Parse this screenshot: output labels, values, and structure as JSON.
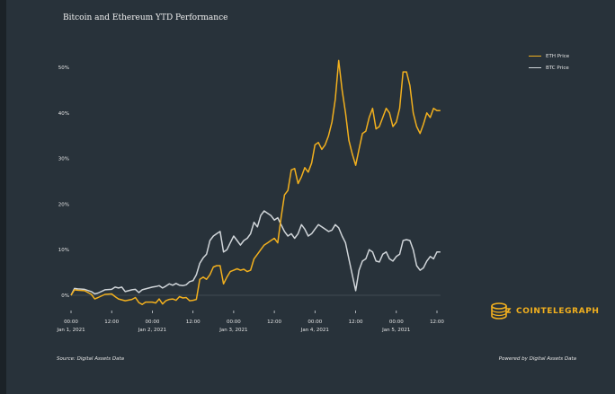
{
  "chart_data": {
    "type": "line",
    "title": "Bitcoin and Ethereum YTD Performance",
    "xlabel": "",
    "ylabel": "",
    "x_range_hours": [
      0,
      108
    ],
    "ylim": [
      -3,
      52
    ],
    "y_ticks": [
      0,
      10,
      20,
      30,
      40,
      50
    ],
    "y_tick_labels": [
      "0%",
      "10%",
      "20%",
      "30%",
      "40%",
      "50%"
    ],
    "x_ticks": [
      {
        "hour": 0,
        "time": "00:00",
        "date": "Jan 1, 2021"
      },
      {
        "hour": 12,
        "time": "12:00",
        "date": ""
      },
      {
        "hour": 24,
        "time": "00:00",
        "date": "Jan 2, 2021"
      },
      {
        "hour": 36,
        "time": "12:00",
        "date": ""
      },
      {
        "hour": 48,
        "time": "00:00",
        "date": "Jan 3, 2021"
      },
      {
        "hour": 60,
        "time": "12:00",
        "date": ""
      },
      {
        "hour": 72,
        "time": "00:00",
        "date": "Jan 4, 2021"
      },
      {
        "hour": 84,
        "time": "12:00",
        "date": ""
      },
      {
        "hour": 96,
        "time": "00:00",
        "date": "Jan 5, 2021"
      },
      {
        "hour": 108,
        "time": "12:00",
        "date": ""
      }
    ],
    "legend_position": "top-right",
    "grid": false,
    "series": [
      {
        "name": "ETH Price",
        "color": "#f2b01e",
        "points": [
          [
            0,
            0
          ],
          [
            1,
            1.2
          ],
          [
            2,
            1.1
          ],
          [
            4,
            1
          ],
          [
            6,
            0.2
          ],
          [
            7,
            -0.8
          ],
          [
            8,
            -0.5
          ],
          [
            10,
            0.2
          ],
          [
            12,
            0.3
          ],
          [
            13,
            -0.3
          ],
          [
            14,
            -0.8
          ],
          [
            16,
            -1.2
          ],
          [
            18,
            -0.9
          ],
          [
            19,
            -0.5
          ],
          [
            20,
            -1.6
          ],
          [
            21,
            -2
          ],
          [
            22,
            -1.5
          ],
          [
            24,
            -1.5
          ],
          [
            25,
            -1.7
          ],
          [
            26,
            -0.8
          ],
          [
            27,
            -1.9
          ],
          [
            28,
            -1.2
          ],
          [
            29,
            -0.9
          ],
          [
            30,
            -0.8
          ],
          [
            31,
            -1.1
          ],
          [
            32,
            -0.3
          ],
          [
            33,
            -0.6
          ],
          [
            34,
            -0.5
          ],
          [
            35,
            -1.2
          ],
          [
            36,
            -1.1
          ],
          [
            37,
            -0.9
          ],
          [
            38,
            3.5
          ],
          [
            39,
            4
          ],
          [
            40,
            3.5
          ],
          [
            41,
            4.5
          ],
          [
            42,
            6.2
          ],
          [
            43,
            6.5
          ],
          [
            44,
            6.5
          ],
          [
            45,
            2.5
          ],
          [
            46,
            4
          ],
          [
            47,
            5.2
          ],
          [
            48,
            5.5
          ],
          [
            49,
            5.8
          ],
          [
            50,
            5.5
          ],
          [
            51,
            5.7
          ],
          [
            52,
            5.2
          ],
          [
            53,
            5.5
          ],
          [
            54,
            8
          ],
          [
            55,
            9
          ],
          [
            56,
            10
          ],
          [
            57,
            11
          ],
          [
            58,
            11.5
          ],
          [
            59,
            12
          ],
          [
            60,
            12.5
          ],
          [
            61,
            11.5
          ],
          [
            62,
            17
          ],
          [
            63,
            22
          ],
          [
            64,
            23
          ],
          [
            65,
            27.5
          ],
          [
            66,
            27.8
          ],
          [
            67,
            24.5
          ],
          [
            68,
            26
          ],
          [
            69,
            28
          ],
          [
            70,
            27
          ],
          [
            71,
            29
          ],
          [
            72,
            33
          ],
          [
            73,
            33.5
          ],
          [
            74,
            32
          ],
          [
            75,
            33
          ],
          [
            76,
            35
          ],
          [
            77,
            38
          ],
          [
            78,
            43
          ],
          [
            79,
            51.5
          ],
          [
            80,
            45
          ],
          [
            81,
            40
          ],
          [
            82,
            34
          ],
          [
            83,
            31
          ],
          [
            84,
            28.5
          ],
          [
            85,
            32
          ],
          [
            86,
            35.5
          ],
          [
            87,
            36
          ],
          [
            88,
            39
          ],
          [
            89,
            41
          ],
          [
            90,
            36.5
          ],
          [
            91,
            37
          ],
          [
            92,
            39
          ],
          [
            93,
            41
          ],
          [
            94,
            40
          ],
          [
            95,
            37
          ],
          [
            96,
            38
          ],
          [
            97,
            41
          ],
          [
            98,
            49
          ],
          [
            99,
            49
          ],
          [
            100,
            46
          ],
          [
            101,
            40
          ],
          [
            102,
            37
          ],
          [
            103,
            35.5
          ],
          [
            104,
            37.5
          ],
          [
            105,
            40
          ],
          [
            106,
            39
          ],
          [
            107,
            41
          ],
          [
            108,
            40.5
          ],
          [
            109,
            40.5
          ]
        ]
      },
      {
        "name": "BTC Price",
        "color": "#d0d5d9",
        "points": [
          [
            0,
            0
          ],
          [
            1,
            1.5
          ],
          [
            2,
            1.4
          ],
          [
            4,
            1.3
          ],
          [
            6,
            0.8
          ],
          [
            7,
            0.3
          ],
          [
            8,
            0.5
          ],
          [
            10,
            1.2
          ],
          [
            12,
            1.3
          ],
          [
            13,
            1.8
          ],
          [
            14,
            1.6
          ],
          [
            15,
            1.8
          ],
          [
            16,
            0.8
          ],
          [
            18,
            1.2
          ],
          [
            19,
            1.3
          ],
          [
            20,
            0.6
          ],
          [
            21,
            1.2
          ],
          [
            22,
            1.4
          ],
          [
            24,
            1.8
          ],
          [
            25,
            1.9
          ],
          [
            26,
            2.1
          ],
          [
            27,
            1.6
          ],
          [
            28,
            2
          ],
          [
            29,
            2.5
          ],
          [
            30,
            2.2
          ],
          [
            31,
            2.6
          ],
          [
            32,
            2.2
          ],
          [
            33,
            2.1
          ],
          [
            34,
            2.3
          ],
          [
            35,
            3
          ],
          [
            36,
            3.2
          ],
          [
            37,
            4.5
          ],
          [
            38,
            7
          ],
          [
            39,
            8.2
          ],
          [
            40,
            9
          ],
          [
            41,
            12
          ],
          [
            42,
            13
          ],
          [
            43,
            13.5
          ],
          [
            44,
            14
          ],
          [
            45,
            9.5
          ],
          [
            46,
            10
          ],
          [
            47,
            11.5
          ],
          [
            48,
            13
          ],
          [
            49,
            12
          ],
          [
            50,
            11
          ],
          [
            51,
            12
          ],
          [
            52,
            12.5
          ],
          [
            53,
            13.5
          ],
          [
            54,
            16
          ],
          [
            55,
            15
          ],
          [
            56,
            17.5
          ],
          [
            57,
            18.5
          ],
          [
            58,
            18
          ],
          [
            59,
            17.5
          ],
          [
            60,
            16.5
          ],
          [
            61,
            17
          ],
          [
            62,
            15.5
          ],
          [
            63,
            14
          ],
          [
            64,
            13
          ],
          [
            65,
            13.5
          ],
          [
            66,
            12.5
          ],
          [
            67,
            13.5
          ],
          [
            68,
            15.5
          ],
          [
            69,
            14.5
          ],
          [
            70,
            13
          ],
          [
            71,
            13.5
          ],
          [
            72,
            14.5
          ],
          [
            73,
            15.5
          ],
          [
            74,
            15
          ],
          [
            75,
            14.5
          ],
          [
            76,
            14
          ],
          [
            77,
            14.3
          ],
          [
            78,
            15.5
          ],
          [
            79,
            14.8
          ],
          [
            80,
            13
          ],
          [
            81,
            11.5
          ],
          [
            82,
            8
          ],
          [
            83,
            4.5
          ],
          [
            84,
            1
          ],
          [
            85,
            5.5
          ],
          [
            86,
            7.5
          ],
          [
            87,
            8
          ],
          [
            88,
            10
          ],
          [
            89,
            9.5
          ],
          [
            90,
            7.5
          ],
          [
            91,
            7.3
          ],
          [
            92,
            9
          ],
          [
            93,
            9.5
          ],
          [
            94,
            8
          ],
          [
            95,
            7.5
          ],
          [
            96,
            8.5
          ],
          [
            97,
            9
          ],
          [
            98,
            12
          ],
          [
            99,
            12.2
          ],
          [
            100,
            12
          ],
          [
            101,
            10
          ],
          [
            102,
            6.5
          ],
          [
            103,
            5.5
          ],
          [
            104,
            6
          ],
          [
            105,
            7.5
          ],
          [
            106,
            8.5
          ],
          [
            107,
            8
          ],
          [
            108,
            9.5
          ],
          [
            109,
            9.5
          ]
        ]
      }
    ]
  },
  "footer": {
    "source": "Source: Digital Assets Data",
    "powered": "Powered by Digital Assets Data"
  },
  "logo": {
    "text": "COINTELEGRAPH",
    "color": "#f2b01e"
  }
}
